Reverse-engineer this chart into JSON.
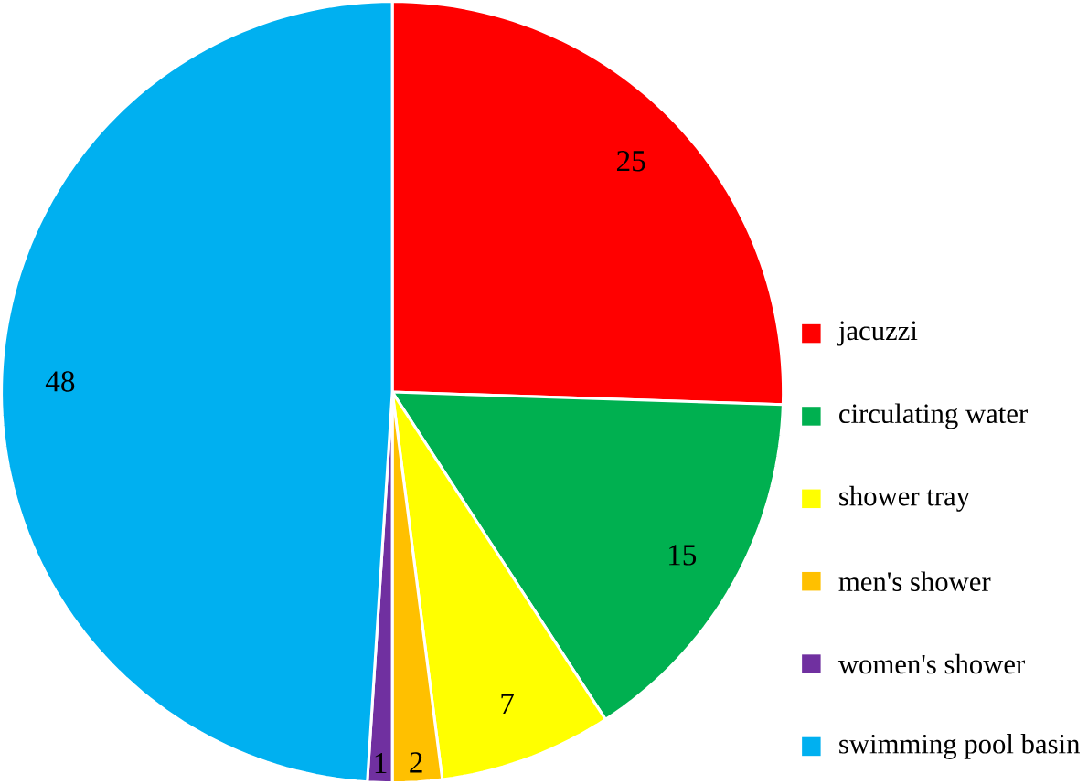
{
  "chart_data": {
    "type": "pie",
    "categories": [
      "jacuzzi",
      "circulating water",
      "shower tray",
      "men's shower",
      "women's shower",
      "swimming pool basin"
    ],
    "values": [
      25,
      15,
      7,
      2,
      1,
      48
    ],
    "colors": [
      "#ff0000",
      "#00b050",
      "#ffff00",
      "#ffc000",
      "#7030a0",
      "#00b0f0"
    ],
    "data_labels": true,
    "legend": "right"
  }
}
